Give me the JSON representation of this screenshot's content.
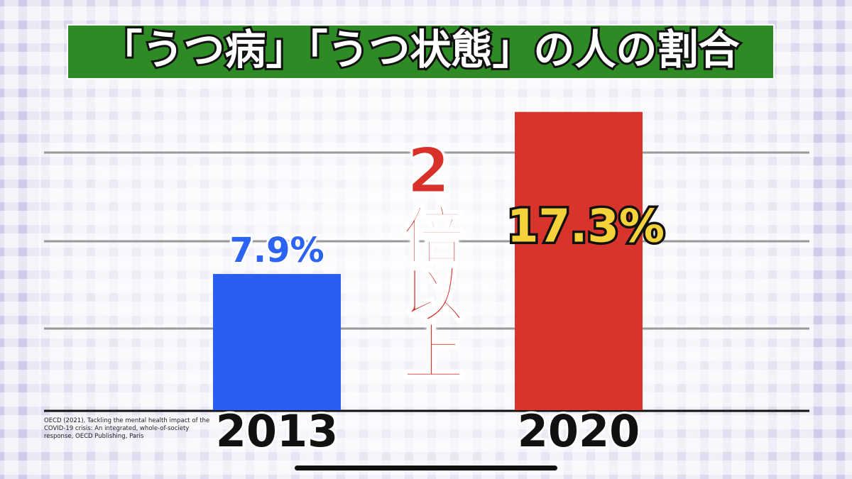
{
  "chart_data": {
    "type": "bar",
    "title": "「うつ病」「うつ状態」の人の割合",
    "categories": [
      "2013",
      "2020"
    ],
    "values": [
      7.9,
      17.3
    ],
    "value_labels": [
      "7.9%",
      "17.3%"
    ],
    "colors": [
      "#2a5ef0",
      "#d9342b"
    ],
    "ylim": [
      0,
      17.7
    ],
    "annotation": "2倍以上",
    "source": "OECD (2021), Tackling the mental health impact of the COVID-19 crisis: An integrated, whole-of-society response, OECD Publishing, Paris"
  }
}
